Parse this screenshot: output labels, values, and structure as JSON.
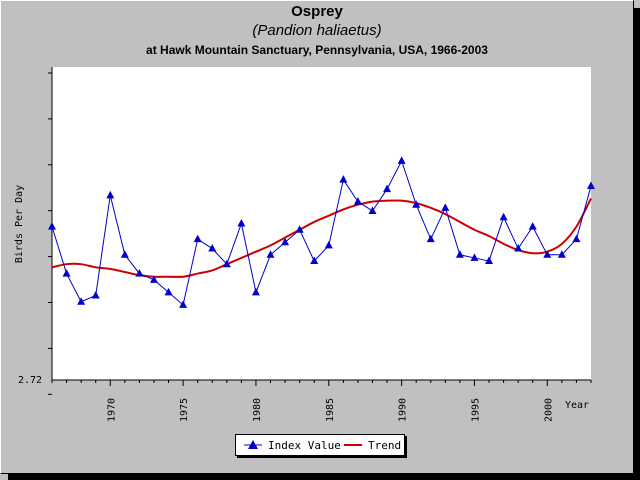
{
  "header": {
    "title": "Osprey",
    "subtitle": "(Pandion haliaetus)",
    "location": "at Hawk Mountain Sanctuary, Pennsylvania, USA, 1966-2003"
  },
  "chart_data": {
    "type": "line",
    "ylabel": "Birds Per Day",
    "xlabel": "Year",
    "y_tick_labels": [
      "2.72"
    ],
    "x_tick_labels": [
      "1970",
      "1975",
      "1980",
      "1985",
      "1990",
      "1995",
      "2000"
    ],
    "x_ticks": [
      1970,
      1975,
      1980,
      1985,
      1990,
      1995,
      2000
    ],
    "xlim": [
      1966,
      2003
    ],
    "grid": false,
    "legend_position": "bottom-center",
    "series": [
      {
        "name": "Index Value",
        "color": "#0000cc",
        "marker": "triangle",
        "x": [
          1966,
          1967,
          1968,
          1969,
          1970,
          1971,
          1972,
          1973,
          1974,
          1975,
          1976,
          1977,
          1978,
          1979,
          1980,
          1981,
          1982,
          1983,
          1984,
          1985,
          1986,
          1987,
          1988,
          1989,
          1990,
          1991,
          1992,
          1993,
          1994,
          1995,
          1996,
          1997,
          1998,
          1999,
          2000,
          2001,
          2002,
          2003
        ],
        "values": [
          0.49,
          0.34,
          0.25,
          0.27,
          0.59,
          0.4,
          0.34,
          0.32,
          0.28,
          0.24,
          0.45,
          0.42,
          0.37,
          0.5,
          0.28,
          0.4,
          0.44,
          0.48,
          0.38,
          0.43,
          0.64,
          0.57,
          0.54,
          0.61,
          0.7,
          0.56,
          0.45,
          0.55,
          0.4,
          0.39,
          0.38,
          0.52,
          0.42,
          0.49,
          0.4,
          0.4,
          0.45,
          0.62
        ]
      },
      {
        "name": "Trend",
        "color": "#cc0000",
        "x": [
          1966,
          1967,
          1968,
          1969,
          1970,
          1971,
          1972,
          1973,
          1974,
          1975,
          1976,
          1977,
          1978,
          1979,
          1980,
          1981,
          1982,
          1983,
          1984,
          1985,
          1986,
          1987,
          1988,
          1989,
          1990,
          1991,
          1992,
          1993,
          1994,
          1995,
          1996,
          1997,
          1998,
          1999,
          2000,
          2001,
          2002,
          2003
        ],
        "values": [
          0.36,
          0.37,
          0.37,
          0.36,
          0.355,
          0.345,
          0.335,
          0.33,
          0.33,
          0.33,
          0.34,
          0.35,
          0.37,
          0.39,
          0.41,
          0.43,
          0.455,
          0.48,
          0.505,
          0.525,
          0.545,
          0.56,
          0.57,
          0.573,
          0.573,
          0.565,
          0.55,
          0.53,
          0.505,
          0.48,
          0.46,
          0.435,
          0.415,
          0.405,
          0.41,
          0.435,
          0.49,
          0.58
        ]
      }
    ]
  },
  "legend": {
    "items": [
      {
        "label": "Index Value",
        "color": "#0000cc",
        "icon": "triangle-icon"
      },
      {
        "label": "Trend",
        "color": "#cc0000",
        "icon": "line-icon"
      }
    ]
  }
}
